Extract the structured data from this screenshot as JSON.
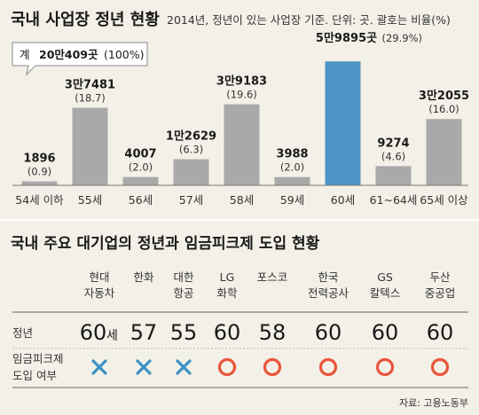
{
  "chart_data": {
    "type": "bar",
    "title": "국내 사업장 정년 현황",
    "subtitle": "2014년, 정년이 있는 사업장 기준. 단위: 곳. 괄호는 비율(%)",
    "total_label": "계",
    "total_value": "20만409곳",
    "total_pct": "(100%)",
    "categories": [
      "54세 이하",
      "55세",
      "56세",
      "57세",
      "58세",
      "59세",
      "60세",
      "61~64세",
      "65세 이상"
    ],
    "values": [
      1896,
      37481,
      4007,
      12629,
      39183,
      3988,
      59895,
      9274,
      32055
    ],
    "value_labels": [
      "1896",
      "3만7481",
      "4007",
      "1만2629",
      "3만9183",
      "3988",
      "5만9895곳",
      "9274",
      "3만2055"
    ],
    "pct_labels": [
      "(0.9)",
      "(18.7)",
      "(2.0)",
      "(6.3)",
      "(19.6)",
      "(2.0)",
      "(29.9%)",
      "(4.6)",
      "(16.0)"
    ],
    "highlight_index": 6,
    "colors": {
      "bar": "#a9a9a9",
      "highlight": "#4d96c6"
    }
  },
  "table": {
    "title": "국내 주요 대기업의 정년과 임금피크제 도입 현황",
    "companies": [
      [
        "현대",
        "자동차"
      ],
      [
        "한화"
      ],
      [
        "대한",
        "항공"
      ],
      [
        "LG",
        "화학"
      ],
      [
        "포스코"
      ],
      [
        "한국",
        "전력공사"
      ],
      [
        "GS",
        "칼텍스"
      ],
      [
        "두산",
        "중공업"
      ]
    ],
    "row1_label": "정년",
    "row1_values": [
      "60",
      "57",
      "55",
      "60",
      "58",
      "60",
      "60",
      "60"
    ],
    "row1_unit": "세",
    "row2_label": [
      "임금피크제",
      "도입 여부"
    ],
    "row2_values": [
      "x",
      "x",
      "x",
      "o",
      "o",
      "o",
      "o",
      "o"
    ],
    "colors": {
      "x": "#3a92c4",
      "o": "#e8553a"
    }
  },
  "source": "자료: 고용노동부"
}
